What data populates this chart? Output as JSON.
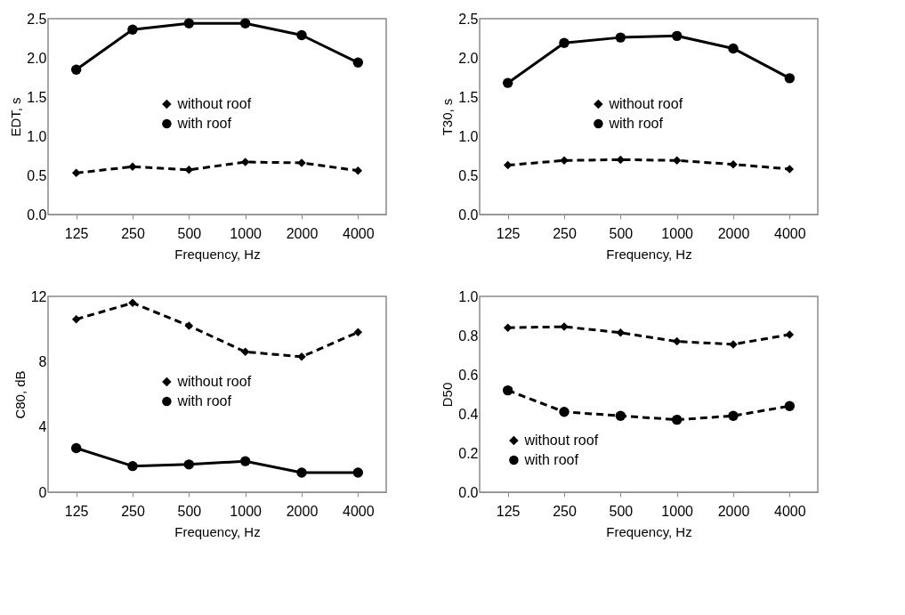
{
  "chart_data": [
    {
      "type": "line",
      "xlabel": "Frequency, Hz",
      "ylabel": "EDT, s",
      "categories": [
        "125",
        "250",
        "500",
        "1000",
        "2000",
        "4000"
      ],
      "ylim": [
        0,
        2.5
      ],
      "yticks": [
        {
          "value": 0,
          "label": "0.0"
        },
        0.5,
        {
          "value": 1,
          "label": "1.0"
        },
        1.5,
        {
          "value": 2,
          "label": "2.0"
        },
        2.5
      ],
      "legend": "center",
      "grid": false,
      "series": [
        {
          "name": "without roof",
          "color": "#000000",
          "marker": "diamond",
          "line_style": "dashed",
          "values": [
            0.53,
            0.61,
            0.57,
            0.67,
            0.66,
            0.56
          ]
        },
        {
          "name": "with roof",
          "color": "#000000",
          "marker": "circle",
          "line_style": "solid",
          "values": [
            1.85,
            2.36,
            2.44,
            2.44,
            2.29,
            1.94
          ]
        }
      ]
    },
    {
      "type": "line",
      "xlabel": "Frequency, Hz",
      "ylabel": "T30, s",
      "categories": [
        "125",
        "250",
        "500",
        "1000",
        "2000",
        "4000"
      ],
      "ylim": [
        0,
        2.5
      ],
      "yticks": [
        {
          "value": 0,
          "label": "0.0"
        },
        0.5,
        {
          "value": 1,
          "label": "1.0"
        },
        1.5,
        {
          "value": 2,
          "label": "2.0"
        },
        2.5
      ],
      "legend": "center",
      "grid": false,
      "series": [
        {
          "name": "without roof",
          "color": "#000000",
          "marker": "diamond",
          "line_style": "dashed",
          "values": [
            0.63,
            0.69,
            0.7,
            0.69,
            0.64,
            0.58
          ]
        },
        {
          "name": "with roof",
          "color": "#000000",
          "marker": "circle",
          "line_style": "solid",
          "values": [
            1.68,
            2.19,
            2.26,
            2.28,
            2.12,
            1.74
          ]
        }
      ]
    },
    {
      "type": "line",
      "xlabel": "Frequency, Hz",
      "ylabel": "C80, dB",
      "categories": [
        "125",
        "250",
        "500",
        "1000",
        "2000",
        "4000"
      ],
      "ylim": [
        0,
        12
      ],
      "yticks": [
        0,
        4,
        8,
        12
      ],
      "legend": "center",
      "grid": false,
      "series": [
        {
          "name": "without roof",
          "color": "#000000",
          "marker": "diamond",
          "line_style": "dashed",
          "values": [
            10.6,
            11.6,
            10.2,
            8.6,
            8.3,
            9.8
          ]
        },
        {
          "name": "with roof",
          "color": "#000000",
          "marker": "circle",
          "line_style": "solid",
          "values": [
            2.7,
            1.6,
            1.7,
            1.9,
            1.2,
            1.2
          ]
        }
      ]
    },
    {
      "type": "line",
      "xlabel": "Frequency, Hz",
      "ylabel": "D50",
      "categories": [
        "125",
        "250",
        "500",
        "1000",
        "2000",
        "4000"
      ],
      "ylim": [
        0,
        1.0
      ],
      "yticks": [
        {
          "value": 0,
          "label": "0.0"
        },
        0.2,
        0.4,
        0.6,
        0.8,
        {
          "value": 1,
          "label": "1.0"
        }
      ],
      "legend": "bottom left",
      "grid": false,
      "series": [
        {
          "name": "without roof",
          "color": "#000000",
          "marker": "diamond",
          "line_style": "dashed",
          "values": [
            0.84,
            0.845,
            0.815,
            0.77,
            0.755,
            0.805
          ]
        },
        {
          "name": "with roof",
          "color": "#000000",
          "marker": "circle",
          "line_style": "dashed",
          "values": [
            0.52,
            0.41,
            0.39,
            0.37,
            0.39,
            0.44
          ]
        }
      ]
    }
  ]
}
